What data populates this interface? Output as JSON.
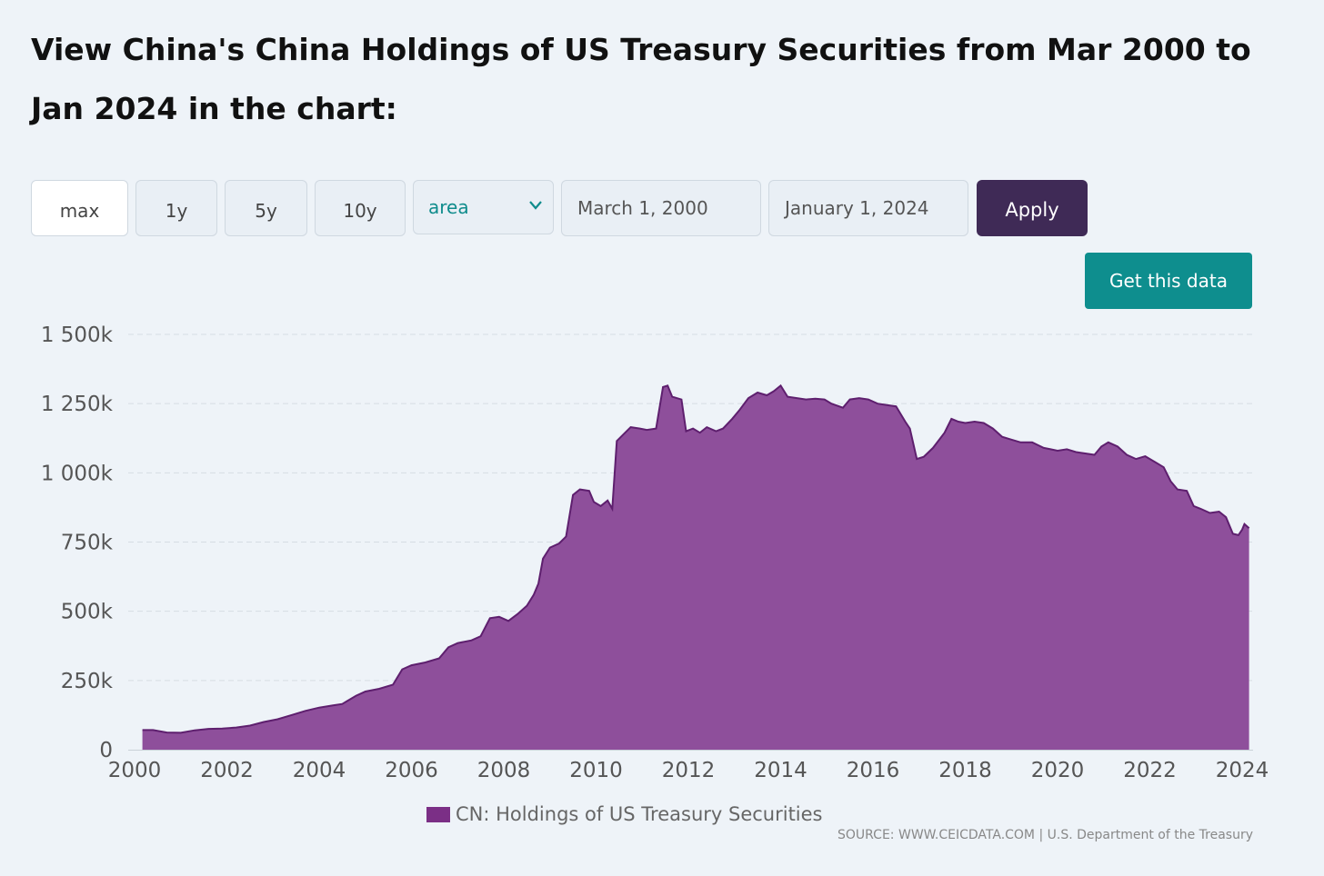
{
  "title": "View China's China Holdings of US Treasury Securities from Mar 2000 to Jan 2024 in the chart:",
  "controls": {
    "range_buttons": [
      "max",
      "1y",
      "5y",
      "10y"
    ],
    "active_range": "max",
    "chart_type_value": "area",
    "start_date": "March 1, 2000",
    "end_date": "January 1, 2024",
    "apply_label": "Apply",
    "get_data_label": "Get this data"
  },
  "colors": {
    "area_fill": "#8e4f9b",
    "area_line": "#5e1f6e",
    "legend_swatch": "#7b2f86",
    "apply_bg": "#3f2a56",
    "get_data_bg": "#0e8e8e"
  },
  "legend_label": "CN: Holdings of US Treasury Securities",
  "source_text": "SOURCE: WWW.CEICDATA.COM | U.S. Department of the Treasury",
  "chart_data": {
    "type": "area",
    "title": "",
    "xlabel": "",
    "ylabel": "",
    "ylim": [
      0,
      1500000
    ],
    "xlim": [
      2000,
      2024
    ],
    "y_ticks": [
      0,
      250000,
      500000,
      750000,
      1000000,
      1250000,
      1500000
    ],
    "y_tick_labels": [
      "0",
      "250k",
      "500k",
      "750k",
      "1 000k",
      "1 250k",
      "1 500k"
    ],
    "x_ticks": [
      2000,
      2002,
      2004,
      2006,
      2008,
      2010,
      2012,
      2014,
      2016,
      2018,
      2020,
      2022,
      2024
    ],
    "x_tick_labels": [
      "2000",
      "2002",
      "2004",
      "2006",
      "2008",
      "2010",
      "2012",
      "2014",
      "2016",
      "2018",
      "2020",
      "2022",
      "2024"
    ],
    "grid": true,
    "legend_position": "bottom",
    "series": [
      {
        "name": "CN: Holdings of US Treasury Securities",
        "points": [
          [
            2000.17,
            71000
          ],
          [
            2000.4,
            71000
          ],
          [
            2000.7,
            62000
          ],
          [
            2001.0,
            61000
          ],
          [
            2001.3,
            70000
          ],
          [
            2001.6,
            75000
          ],
          [
            2001.9,
            76000
          ],
          [
            2002.2,
            80000
          ],
          [
            2002.5,
            87000
          ],
          [
            2002.8,
            100000
          ],
          [
            2003.1,
            110000
          ],
          [
            2003.4,
            125000
          ],
          [
            2003.7,
            140000
          ],
          [
            2004.0,
            152000
          ],
          [
            2004.3,
            160000
          ],
          [
            2004.5,
            165000
          ],
          [
            2004.8,
            195000
          ],
          [
            2005.0,
            210000
          ],
          [
            2005.3,
            220000
          ],
          [
            2005.6,
            235000
          ],
          [
            2005.8,
            290000
          ],
          [
            2006.0,
            305000
          ],
          [
            2006.3,
            315000
          ],
          [
            2006.6,
            330000
          ],
          [
            2006.8,
            370000
          ],
          [
            2007.0,
            385000
          ],
          [
            2007.3,
            395000
          ],
          [
            2007.5,
            410000
          ],
          [
            2007.7,
            475000
          ],
          [
            2007.9,
            480000
          ],
          [
            2008.1,
            465000
          ],
          [
            2008.3,
            490000
          ],
          [
            2008.5,
            520000
          ],
          [
            2008.65,
            560000
          ],
          [
            2008.75,
            600000
          ],
          [
            2008.85,
            690000
          ],
          [
            2009.0,
            730000
          ],
          [
            2009.2,
            745000
          ],
          [
            2009.35,
            770000
          ],
          [
            2009.5,
            920000
          ],
          [
            2009.65,
            940000
          ],
          [
            2009.85,
            935000
          ],
          [
            2009.95,
            895000
          ],
          [
            2010.1,
            880000
          ],
          [
            2010.25,
            900000
          ],
          [
            2010.35,
            870000
          ],
          [
            2010.45,
            1115000
          ],
          [
            2010.6,
            1140000
          ],
          [
            2010.75,
            1165000
          ],
          [
            2010.95,
            1160000
          ],
          [
            2011.1,
            1155000
          ],
          [
            2011.3,
            1160000
          ],
          [
            2011.45,
            1310000
          ],
          [
            2011.55,
            1315000
          ],
          [
            2011.65,
            1275000
          ],
          [
            2011.85,
            1265000
          ],
          [
            2011.95,
            1150000
          ],
          [
            2012.1,
            1160000
          ],
          [
            2012.25,
            1145000
          ],
          [
            2012.4,
            1165000
          ],
          [
            2012.6,
            1150000
          ],
          [
            2012.75,
            1160000
          ],
          [
            2012.95,
            1195000
          ],
          [
            2013.1,
            1225000
          ],
          [
            2013.3,
            1270000
          ],
          [
            2013.5,
            1290000
          ],
          [
            2013.7,
            1280000
          ],
          [
            2013.85,
            1295000
          ],
          [
            2014.0,
            1315000
          ],
          [
            2014.15,
            1275000
          ],
          [
            2014.35,
            1270000
          ],
          [
            2014.55,
            1265000
          ],
          [
            2014.75,
            1268000
          ],
          [
            2014.95,
            1265000
          ],
          [
            2015.1,
            1250000
          ],
          [
            2015.35,
            1235000
          ],
          [
            2015.5,
            1265000
          ],
          [
            2015.7,
            1270000
          ],
          [
            2015.9,
            1265000
          ],
          [
            2016.1,
            1250000
          ],
          [
            2016.3,
            1245000
          ],
          [
            2016.5,
            1240000
          ],
          [
            2016.7,
            1185000
          ],
          [
            2016.8,
            1160000
          ],
          [
            2016.95,
            1050000
          ],
          [
            2017.1,
            1058000
          ],
          [
            2017.3,
            1090000
          ],
          [
            2017.55,
            1145000
          ],
          [
            2017.7,
            1195000
          ],
          [
            2017.85,
            1185000
          ],
          [
            2018.0,
            1180000
          ],
          [
            2018.2,
            1185000
          ],
          [
            2018.4,
            1180000
          ],
          [
            2018.6,
            1160000
          ],
          [
            2018.8,
            1130000
          ],
          [
            2019.0,
            1120000
          ],
          [
            2019.2,
            1110000
          ],
          [
            2019.45,
            1110000
          ],
          [
            2019.7,
            1090000
          ],
          [
            2019.85,
            1085000
          ],
          [
            2020.0,
            1080000
          ],
          [
            2020.2,
            1085000
          ],
          [
            2020.4,
            1075000
          ],
          [
            2020.6,
            1070000
          ],
          [
            2020.8,
            1065000
          ],
          [
            2020.95,
            1095000
          ],
          [
            2021.1,
            1110000
          ],
          [
            2021.3,
            1095000
          ],
          [
            2021.5,
            1065000
          ],
          [
            2021.7,
            1050000
          ],
          [
            2021.9,
            1060000
          ],
          [
            2022.1,
            1040000
          ],
          [
            2022.3,
            1020000
          ],
          [
            2022.45,
            970000
          ],
          [
            2022.6,
            940000
          ],
          [
            2022.8,
            935000
          ],
          [
            2022.95,
            880000
          ],
          [
            2023.1,
            870000
          ],
          [
            2023.3,
            855000
          ],
          [
            2023.5,
            860000
          ],
          [
            2023.65,
            840000
          ],
          [
            2023.8,
            780000
          ],
          [
            2023.92,
            775000
          ],
          [
            2024.0,
            795000
          ],
          [
            2024.05,
            815000
          ],
          [
            2024.15,
            800000
          ]
        ]
      }
    ]
  }
}
